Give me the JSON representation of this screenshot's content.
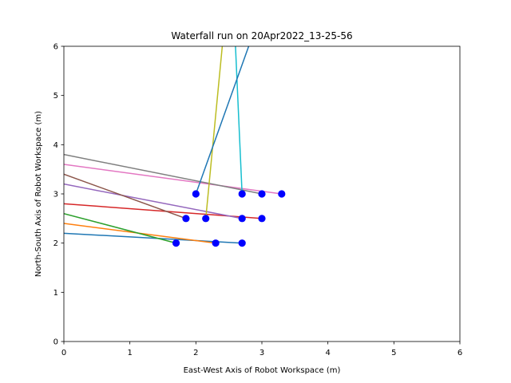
{
  "chart_data": {
    "type": "line",
    "title": "Waterfall run on 20Apr2022_13-25-56",
    "xlabel": "East-West Axis of Robot Workspace (m)",
    "ylabel": "North-South Axis of Robot Workspace (m)",
    "xlim": [
      0,
      6
    ],
    "ylim": [
      0,
      6
    ],
    "xticks": [
      "0",
      "1",
      "2",
      "3",
      "4",
      "5",
      "6"
    ],
    "yticks": [
      "0",
      "1",
      "2",
      "3",
      "4",
      "5",
      "6"
    ],
    "grid": false,
    "legend": "none",
    "colors": [
      "#1f77b4",
      "#ff7f0e",
      "#2ca02c",
      "#d62728",
      "#9467bd",
      "#8c564b",
      "#e377c2",
      "#7f7f7f",
      "#bcbd22",
      "#17becf",
      "#1f77b4"
    ],
    "series": [
      {
        "x": [
          0,
          2.7
        ],
        "y": [
          2.2,
          2.0
        ]
      },
      {
        "x": [
          0,
          2.3
        ],
        "y": [
          2.4,
          2.0
        ]
      },
      {
        "x": [
          0,
          1.7
        ],
        "y": [
          2.6,
          2.0
        ]
      },
      {
        "x": [
          0,
          3.0
        ],
        "y": [
          2.8,
          2.5
        ]
      },
      {
        "x": [
          0,
          2.7
        ],
        "y": [
          3.2,
          2.5
        ]
      },
      {
        "x": [
          0,
          1.85
        ],
        "y": [
          3.4,
          2.5
        ]
      },
      {
        "x": [
          0,
          3.3
        ],
        "y": [
          3.6,
          3.0
        ]
      },
      {
        "x": [
          0,
          3.0
        ],
        "y": [
          3.8,
          3.0
        ]
      },
      {
        "x": [
          2.15,
          2.4
        ],
        "y": [
          2.5,
          6.0
        ]
      },
      {
        "x": [
          2.7,
          2.6
        ],
        "y": [
          3.0,
          6.0
        ]
      },
      {
        "x": [
          2.0,
          2.8
        ],
        "y": [
          3.0,
          6.0
        ]
      }
    ],
    "markers": {
      "color": "#0000ff",
      "x": [
        1.7,
        2.3,
        2.7,
        1.85,
        2.15,
        2.7,
        3.0,
        2.0,
        2.7,
        3.0,
        3.3
      ],
      "y": [
        2.0,
        2.0,
        2.0,
        2.5,
        2.5,
        2.5,
        2.5,
        3.0,
        3.0,
        3.0,
        3.0
      ]
    }
  }
}
